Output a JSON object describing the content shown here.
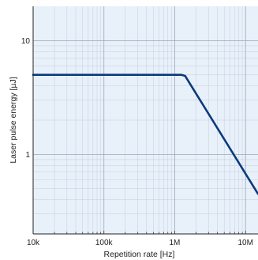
{
  "chart_data": {
    "type": "line",
    "xlabel": "Repetition rate [Hz]",
    "ylabel": "Laser pulse energy [µJ]",
    "x_scale": "log",
    "y_scale": "log",
    "xlim": [
      10000,
      15000000
    ],
    "ylim": [
      0.2,
      20
    ],
    "grid": true,
    "x_ticks": [
      {
        "value": 10000,
        "label": "10k"
      },
      {
        "value": 100000,
        "label": "100k"
      },
      {
        "value": 1000000,
        "label": "1M"
      },
      {
        "value": 10000000,
        "label": "10M"
      }
    ],
    "y_ticks": [
      {
        "value": 1,
        "label": "1"
      },
      {
        "value": 10,
        "label": "10"
      }
    ],
    "series": [
      {
        "color": "#0b3a7a",
        "x": [
          10000,
          1250000,
          1400000,
          15000000
        ],
        "y": [
          5,
          5,
          4.9,
          0.45
        ]
      }
    ],
    "colors": {
      "plot_background": "#e8f0fa",
      "grid": "#9aa8b8",
      "axis": "#222222"
    }
  }
}
